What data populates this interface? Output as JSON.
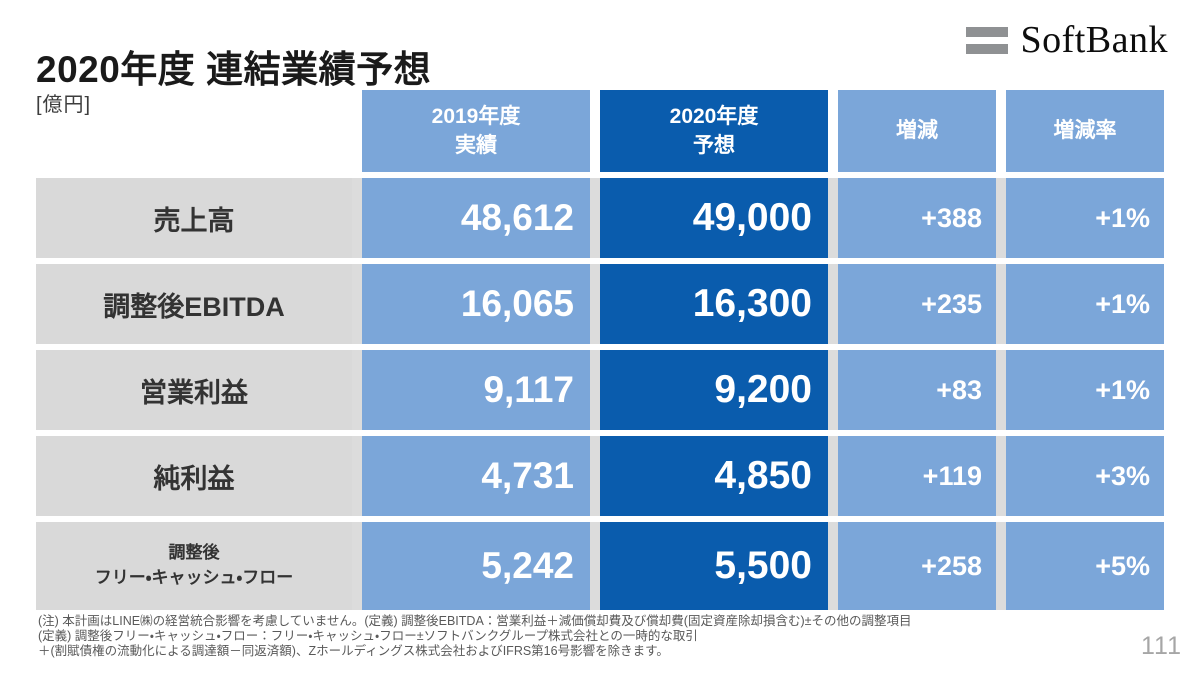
{
  "slide": {
    "title": "2020年度 連結業績予想",
    "unit_label": "[億円]",
    "page_number": "111",
    "logo_text": "SoftBank"
  },
  "colors": {
    "dark_blue": "#0a5cad",
    "light_blue": "#7ba6d9",
    "label_gray": "#d9d9d9",
    "row_gap_gray": "#dcdcdc",
    "logo_bar_gray": "#8f9193"
  },
  "table": {
    "headers": {
      "fy2019": {
        "line1": "2019年度",
        "line2": "実績"
      },
      "fy2020": {
        "line1": "2020年度",
        "line2": "予想"
      },
      "change": {
        "line1": "増減",
        "line2": ""
      },
      "change_rate": {
        "line1": "増減率",
        "line2": ""
      }
    },
    "rows": [
      {
        "label": "売上高",
        "fy2019": "48,612",
        "fy2020": "49,000",
        "change": "+388",
        "change_rate": "+1%"
      },
      {
        "label": "調整後EBITDA",
        "fy2019": "16,065",
        "fy2020": "16,300",
        "change": "+235",
        "change_rate": "+1%"
      },
      {
        "label": "営業利益",
        "fy2019": "9,117",
        "fy2020": "9,200",
        "change": "+83",
        "change_rate": "+1%"
      },
      {
        "label": "純利益",
        "fy2019": "4,731",
        "fy2020": "4,850",
        "change": "+119",
        "change_rate": "+3%"
      },
      {
        "label_line1": "調整後",
        "label_line2": "フリー・キャッシュ・フロー",
        "fy2019": "5,242",
        "fy2020": "5,500",
        "change": "+258",
        "change_rate": "+5%"
      }
    ]
  },
  "footnotes": [
    "(注) 本計画はLINE㈱の経営統合影響を考慮していません。(定義) 調整後EBITDA：営業利益＋減価償却費及び償却費(固定資産除却損含む)±その他の調整項目",
    "(定義) 調整後フリー・キャッシュ・フロー：フリー・キャッシュ・フロー±ソフトバンクグループ株式会社との一時的な取引",
    "＋(割賦債権の流動化による調達額－同返済額)、Zホールディングス株式会社およびIFRS第16号影響を除きます。"
  ]
}
